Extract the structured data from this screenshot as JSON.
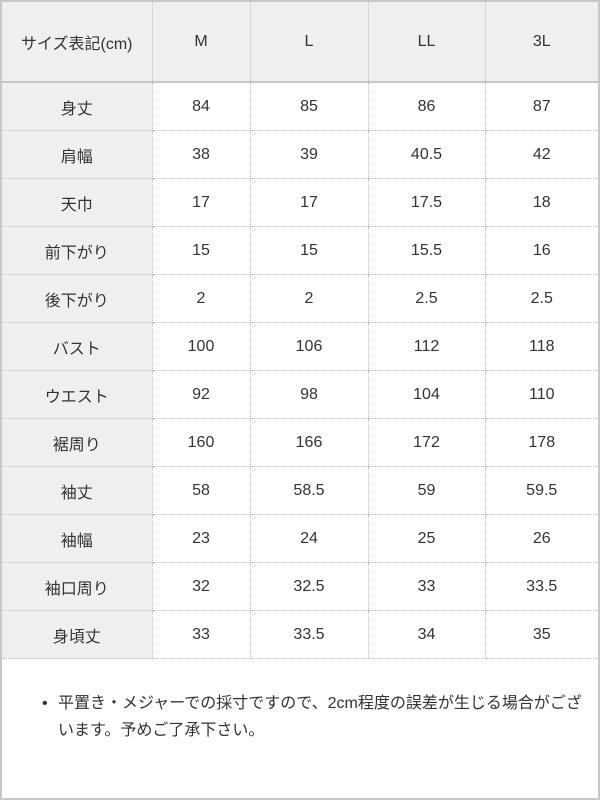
{
  "table": {
    "header": [
      "サイズ表記(cm)",
      "M",
      "L",
      "LL",
      "3L"
    ],
    "rows": [
      {
        "label": "身丈",
        "values": [
          "84",
          "85",
          "86",
          "87"
        ]
      },
      {
        "label": "肩幅",
        "values": [
          "38",
          "39",
          "40.5",
          "42"
        ]
      },
      {
        "label": "天巾",
        "values": [
          "17",
          "17",
          "17.5",
          "18"
        ]
      },
      {
        "label": "前下がり",
        "values": [
          "15",
          "15",
          "15.5",
          "16"
        ]
      },
      {
        "label": "後下がり",
        "values": [
          "2",
          "2",
          "2.5",
          "2.5"
        ]
      },
      {
        "label": "バスト",
        "values": [
          "100",
          "106",
          "112",
          "118"
        ]
      },
      {
        "label": "ウエスト",
        "values": [
          "92",
          "98",
          "104",
          "110"
        ]
      },
      {
        "label": "裾周り",
        "values": [
          "160",
          "166",
          "172",
          "178"
        ]
      },
      {
        "label": "袖丈",
        "values": [
          "58",
          "58.5",
          "59",
          "59.5"
        ]
      },
      {
        "label": "袖幅",
        "values": [
          "23",
          "24",
          "25",
          "26"
        ]
      },
      {
        "label": "袖口周り",
        "values": [
          "32",
          "32.5",
          "33",
          "33.5"
        ]
      },
      {
        "label": "身頃丈",
        "values": [
          "33",
          "33.5",
          "34",
          "35"
        ]
      }
    ]
  },
  "note": {
    "bullet": "•",
    "text": "平置き・メジャーでの採寸ですので、2cm程度の誤差が生じる場合がございます。予めご了承下さい。"
  }
}
